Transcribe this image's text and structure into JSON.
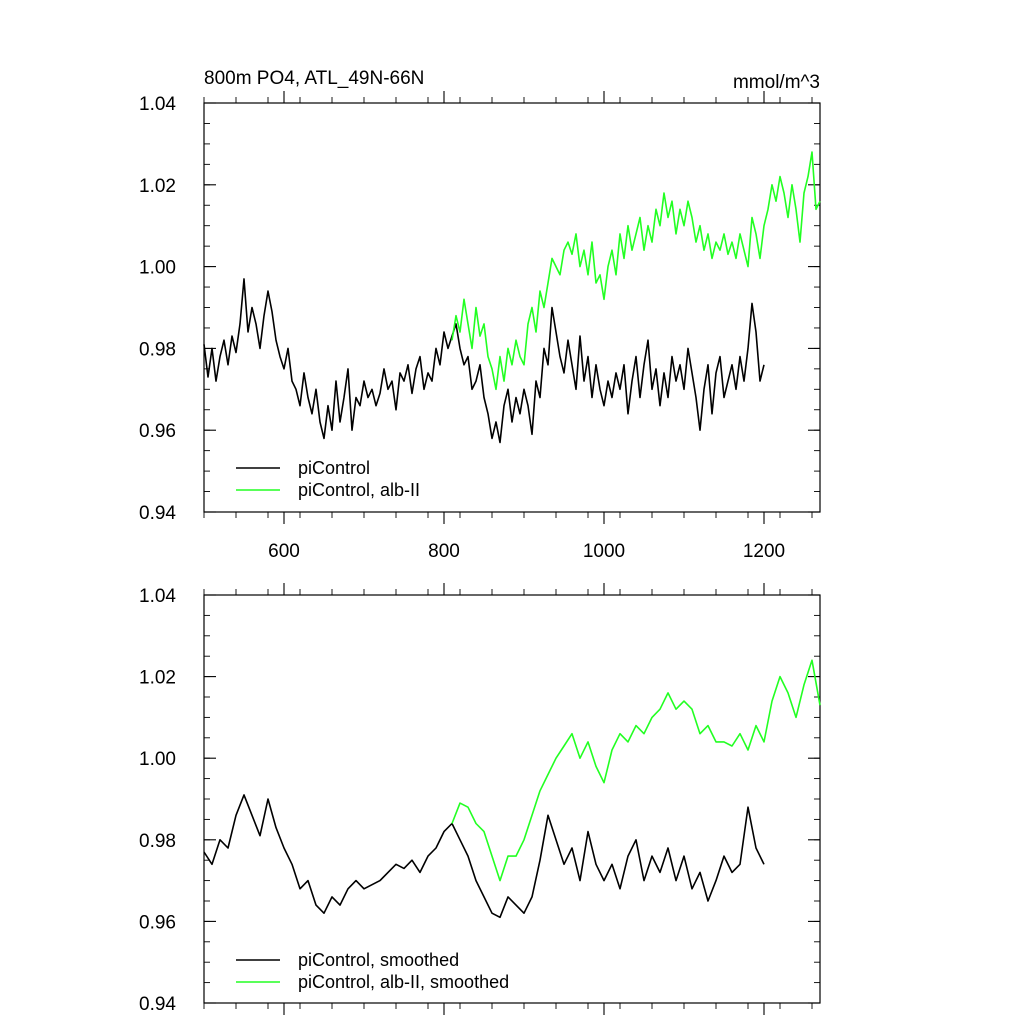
{
  "figure": {
    "title_left": "800m PO4, ATL_49N-66N",
    "title_right": "mmol/m^3"
  },
  "chart_data": [
    {
      "type": "line",
      "title": "800m PO4, ATL_49N-66N",
      "units": "mmol/m^3",
      "xlabel": "",
      "ylabel": "",
      "xlim": [
        500,
        1270
      ],
      "ylim": [
        0.94,
        1.04
      ],
      "x_ticks": [
        600,
        800,
        1000,
        1200
      ],
      "x_tick_labels": [
        "600",
        "800",
        "1000",
        "1200"
      ],
      "y_ticks": [
        0.94,
        0.96,
        0.98,
        1.0,
        1.02,
        1.04
      ],
      "y_tick_labels": [
        "0.94",
        "0.96",
        "0.98",
        "1.00",
        "1.02",
        "1.04"
      ],
      "grid": false,
      "legend_position": "bottom-left",
      "series": [
        {
          "name": "piControl",
          "color": "#000000",
          "x": [
            500,
            505,
            510,
            515,
            520,
            525,
            530,
            535,
            540,
            545,
            550,
            555,
            560,
            565,
            570,
            575,
            580,
            585,
            590,
            595,
            600,
            605,
            610,
            615,
            620,
            625,
            630,
            635,
            640,
            645,
            650,
            655,
            660,
            665,
            670,
            675,
            680,
            685,
            690,
            695,
            700,
            705,
            710,
            715,
            720,
            725,
            730,
            735,
            740,
            745,
            750,
            755,
            760,
            765,
            770,
            775,
            780,
            785,
            790,
            795,
            800,
            805,
            810,
            815,
            820,
            825,
            830,
            835,
            840,
            845,
            850,
            855,
            860,
            865,
            870,
            875,
            880,
            885,
            890,
            895,
            900,
            905,
            910,
            915,
            920,
            925,
            930,
            935,
            940,
            945,
            950,
            955,
            960,
            965,
            970,
            975,
            980,
            985,
            990,
            995,
            1000,
            1005,
            1010,
            1015,
            1020,
            1025,
            1030,
            1035,
            1040,
            1045,
            1050,
            1055,
            1060,
            1065,
            1070,
            1075,
            1080,
            1085,
            1090,
            1095,
            1100,
            1105,
            1110,
            1115,
            1120,
            1125,
            1130,
            1135,
            1140,
            1145,
            1150,
            1155,
            1160,
            1165,
            1170,
            1175,
            1180,
            1185,
            1190,
            1195,
            1200
          ],
          "y": [
            0.981,
            0.973,
            0.98,
            0.972,
            0.978,
            0.982,
            0.976,
            0.983,
            0.979,
            0.986,
            0.997,
            0.984,
            0.99,
            0.986,
            0.98,
            0.988,
            0.994,
            0.989,
            0.982,
            0.978,
            0.975,
            0.98,
            0.972,
            0.97,
            0.966,
            0.974,
            0.968,
            0.964,
            0.97,
            0.962,
            0.958,
            0.966,
            0.96,
            0.972,
            0.962,
            0.968,
            0.975,
            0.96,
            0.968,
            0.966,
            0.972,
            0.968,
            0.97,
            0.966,
            0.969,
            0.975,
            0.97,
            0.972,
            0.965,
            0.974,
            0.972,
            0.976,
            0.969,
            0.975,
            0.978,
            0.97,
            0.974,
            0.972,
            0.98,
            0.976,
            0.984,
            0.98,
            0.983,
            0.986,
            0.98,
            0.976,
            0.978,
            0.97,
            0.972,
            0.976,
            0.968,
            0.964,
            0.958,
            0.962,
            0.957,
            0.966,
            0.97,
            0.962,
            0.968,
            0.964,
            0.97,
            0.966,
            0.959,
            0.972,
            0.968,
            0.98,
            0.976,
            0.99,
            0.984,
            0.978,
            0.974,
            0.982,
            0.976,
            0.97,
            0.983,
            0.972,
            0.978,
            0.968,
            0.976,
            0.97,
            0.966,
            0.972,
            0.968,
            0.974,
            0.97,
            0.976,
            0.964,
            0.972,
            0.978,
            0.968,
            0.976,
            0.982,
            0.97,
            0.975,
            0.966,
            0.974,
            0.968,
            0.978,
            0.972,
            0.976,
            0.97,
            0.98,
            0.974,
            0.968,
            0.96,
            0.97,
            0.976,
            0.964,
            0.974,
            0.978,
            0.968,
            0.972,
            0.976,
            0.97,
            0.978,
            0.972,
            0.98,
            0.991,
            0.984,
            0.972,
            0.976
          ]
        },
        {
          "name": "piControl, alb-II",
          "color": "#22ff22",
          "x": [
            810,
            815,
            820,
            825,
            830,
            835,
            840,
            845,
            850,
            855,
            860,
            865,
            870,
            875,
            880,
            885,
            890,
            895,
            900,
            905,
            910,
            915,
            920,
            925,
            930,
            935,
            940,
            945,
            950,
            955,
            960,
            965,
            970,
            975,
            980,
            985,
            990,
            995,
            1000,
            1005,
            1010,
            1015,
            1020,
            1025,
            1030,
            1035,
            1040,
            1045,
            1050,
            1055,
            1060,
            1065,
            1070,
            1075,
            1080,
            1085,
            1090,
            1095,
            1100,
            1105,
            1110,
            1115,
            1120,
            1125,
            1130,
            1135,
            1140,
            1145,
            1150,
            1155,
            1160,
            1165,
            1170,
            1175,
            1180,
            1185,
            1190,
            1195,
            1200,
            1205,
            1210,
            1215,
            1220,
            1225,
            1230,
            1235,
            1240,
            1245,
            1250,
            1255,
            1260,
            1265,
            1270
          ],
          "y": [
            0.982,
            0.988,
            0.984,
            0.992,
            0.986,
            0.98,
            0.99,
            0.983,
            0.986,
            0.978,
            0.975,
            0.97,
            0.978,
            0.972,
            0.98,
            0.976,
            0.982,
            0.978,
            0.976,
            0.986,
            0.99,
            0.984,
            0.994,
            0.99,
            0.996,
            1.002,
            1.0,
            0.998,
            1.004,
            1.006,
            1.003,
            1.008,
            1.0,
            1.004,
            0.998,
            1.006,
            0.996,
            0.998,
            0.992,
            1.0,
            1.004,
            0.998,
            1.008,
            1.002,
            1.01,
            1.004,
            1.008,
            1.012,
            1.004,
            1.01,
            1.006,
            1.014,
            1.01,
            1.018,
            1.012,
            1.016,
            1.008,
            1.014,
            1.01,
            1.016,
            1.012,
            1.006,
            1.01,
            1.004,
            1.008,
            1.002,
            1.006,
            1.004,
            1.008,
            1.003,
            1.006,
            1.002,
            1.008,
            1.004,
            1.0,
            1.012,
            1.008,
            1.002,
            1.01,
            1.014,
            1.02,
            1.016,
            1.022,
            1.018,
            1.012,
            1.02,
            1.014,
            1.006,
            1.018,
            1.022,
            1.028,
            1.014,
            1.016
          ]
        }
      ],
      "legend": [
        {
          "label": "piControl",
          "color": "#000000"
        },
        {
          "label": "piControl, alb-II",
          "color": "#22ff22"
        }
      ]
    },
    {
      "type": "line",
      "title": "",
      "xlabel": "",
      "ylabel": "",
      "xlim": [
        500,
        1270
      ],
      "ylim": [
        0.94,
        1.04
      ],
      "x_ticks": [
        600,
        800,
        1000,
        1200
      ],
      "y_ticks": [
        0.94,
        0.96,
        0.98,
        1.0,
        1.02,
        1.04
      ],
      "y_tick_labels": [
        "0.94",
        "0.96",
        "0.98",
        "1.00",
        "1.02",
        "1.04"
      ],
      "grid": false,
      "legend_position": "bottom-left",
      "series": [
        {
          "name": "piControl, smoothed",
          "color": "#000000",
          "x": [
            500,
            510,
            520,
            530,
            540,
            550,
            560,
            570,
            580,
            590,
            600,
            610,
            620,
            630,
            640,
            650,
            660,
            670,
            680,
            690,
            700,
            710,
            720,
            730,
            740,
            750,
            760,
            770,
            780,
            790,
            800,
            810,
            820,
            830,
            840,
            850,
            860,
            870,
            880,
            890,
            900,
            910,
            920,
            930,
            940,
            950,
            960,
            970,
            980,
            990,
            1000,
            1010,
            1020,
            1030,
            1040,
            1050,
            1060,
            1070,
            1080,
            1090,
            1100,
            1110,
            1120,
            1130,
            1140,
            1150,
            1160,
            1170,
            1180,
            1190,
            1200
          ],
          "y": [
            0.977,
            0.974,
            0.98,
            0.978,
            0.986,
            0.991,
            0.986,
            0.981,
            0.99,
            0.983,
            0.978,
            0.974,
            0.968,
            0.97,
            0.964,
            0.962,
            0.966,
            0.964,
            0.968,
            0.97,
            0.968,
            0.969,
            0.97,
            0.972,
            0.974,
            0.973,
            0.975,
            0.972,
            0.976,
            0.978,
            0.982,
            0.984,
            0.98,
            0.976,
            0.97,
            0.966,
            0.962,
            0.961,
            0.966,
            0.964,
            0.962,
            0.966,
            0.975,
            0.986,
            0.98,
            0.974,
            0.978,
            0.97,
            0.982,
            0.974,
            0.97,
            0.974,
            0.968,
            0.976,
            0.98,
            0.97,
            0.976,
            0.972,
            0.978,
            0.97,
            0.976,
            0.968,
            0.972,
            0.965,
            0.97,
            0.976,
            0.972,
            0.974,
            0.988,
            0.978,
            0.974
          ]
        },
        {
          "name": "piControl, alb-II, smoothed",
          "color": "#22ff22",
          "x": [
            810,
            820,
            830,
            840,
            850,
            860,
            870,
            880,
            890,
            900,
            910,
            920,
            930,
            940,
            950,
            960,
            970,
            980,
            990,
            1000,
            1010,
            1020,
            1030,
            1040,
            1050,
            1060,
            1070,
            1080,
            1090,
            1100,
            1110,
            1120,
            1130,
            1140,
            1150,
            1160,
            1170,
            1180,
            1190,
            1200,
            1210,
            1220,
            1230,
            1240,
            1250,
            1260,
            1270
          ],
          "y": [
            0.984,
            0.989,
            0.988,
            0.984,
            0.982,
            0.976,
            0.97,
            0.976,
            0.976,
            0.98,
            0.986,
            0.992,
            0.996,
            1.0,
            1.003,
            1.006,
            1.0,
            1.004,
            0.998,
            0.994,
            1.002,
            1.006,
            1.004,
            1.008,
            1.006,
            1.01,
            1.012,
            1.016,
            1.012,
            1.014,
            1.012,
            1.006,
            1.008,
            1.004,
            1.004,
            1.003,
            1.006,
            1.002,
            1.008,
            1.004,
            1.014,
            1.02,
            1.016,
            1.01,
            1.018,
            1.024,
            1.013
          ]
        }
      ],
      "legend": [
        {
          "label": "piControl, smoothed",
          "color": "#000000"
        },
        {
          "label": "piControl, alb-II, smoothed",
          "color": "#22ff22"
        }
      ]
    }
  ]
}
